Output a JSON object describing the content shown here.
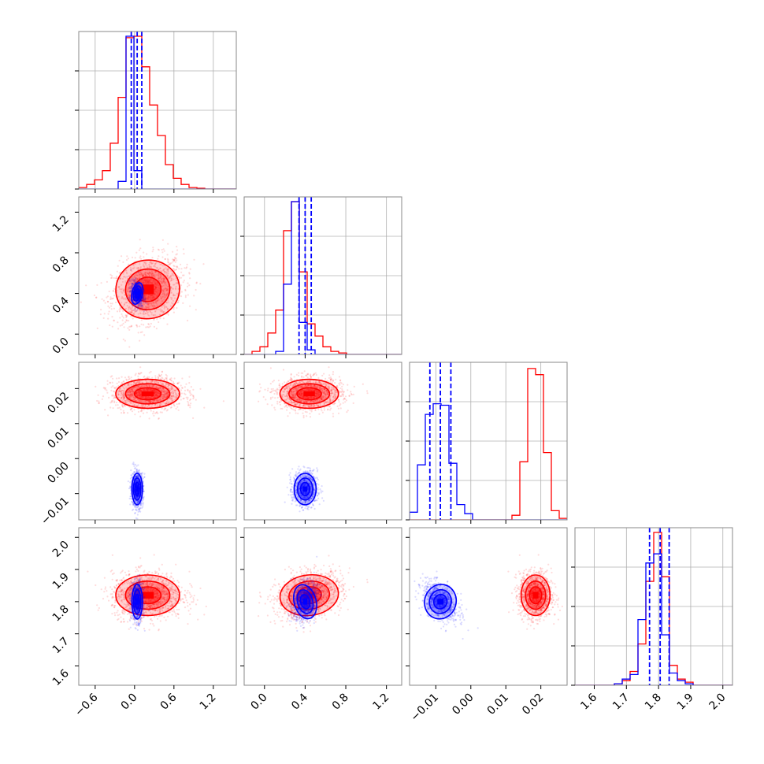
{
  "chart_data": {
    "type": "corner",
    "parameters": 4,
    "colors": {
      "series_a": "#ff0000",
      "series_b": "#0000ff",
      "grid": "#b0b0b0",
      "frame": "#888888"
    },
    "grid": true,
    "axes": [
      {
        "range": [
          -0.85,
          1.55
        ],
        "ticks": [
          -0.6,
          0.0,
          0.6,
          1.2
        ],
        "tick_labels": [
          "−0.6",
          "0.0",
          "0.6",
          "1.2"
        ]
      },
      {
        "range": [
          -0.2,
          1.35
        ],
        "ticks": [
          0.0,
          0.4,
          0.8,
          1.2
        ],
        "tick_labels": [
          "0.0",
          "0.4",
          "0.8",
          "1.2"
        ]
      },
      {
        "range": [
          -0.0175,
          0.0275
        ],
        "ticks": [
          -0.01,
          0.0,
          0.01,
          0.02
        ],
        "tick_labels": [
          "−0.01",
          "0.00",
          "0.01",
          "0.02"
        ]
      },
      {
        "range": [
          1.54,
          2.03
        ],
        "ticks": [
          1.6,
          1.7,
          1.8,
          1.9,
          2.0
        ],
        "tick_labels": [
          "1.6",
          "1.7",
          "1.8",
          "1.9",
          "2.0"
        ]
      }
    ],
    "series": [
      {
        "color": "#ff0000",
        "mean": [
          0.2,
          0.44,
          0.0185,
          1.82
        ],
        "std": [
          0.27,
          0.16,
          0.0023,
          0.035
        ],
        "correlation": [
          [
            1,
            0.25,
            0,
            0
          ],
          [
            0.25,
            1,
            0,
            0.3
          ],
          [
            0,
            0,
            1,
            0
          ],
          [
            0,
            0.3,
            0,
            1
          ]
        ]
      },
      {
        "color": "#0000ff",
        "mean": [
          0.04,
          0.4,
          -0.0087,
          1.8
        ],
        "std": [
          0.045,
          0.06,
          0.0025,
          0.03
        ],
        "correlation": [
          [
            1,
            -0.2,
            0,
            0
          ],
          [
            -0.2,
            1,
            0,
            0.3
          ],
          [
            0,
            0,
            1,
            -0.45
          ],
          [
            0,
            0.3,
            -0.45,
            1
          ]
        ]
      }
    ],
    "quantiles": [
      [
        -0.05,
        0.04,
        0.11
      ],
      [
        0.34,
        0.4,
        0.46
      ],
      [
        -0.0117,
        -0.0087,
        -0.0057
      ],
      [
        1.772,
        1.805,
        1.833
      ]
    ],
    "histograms": [
      {
        "series_a": [
          0.01,
          0.03,
          0.06,
          0.12,
          0.3,
          0.6,
          0.99,
          1.0,
          0.8,
          0.55,
          0.35,
          0.16,
          0.07,
          0.03,
          0.01,
          0.005,
          0,
          0,
          0,
          0
        ],
        "series_b": [
          0,
          0,
          0,
          0,
          0,
          0.05,
          1.0,
          0.12,
          0,
          0,
          0,
          0,
          0,
          0,
          0,
          0,
          0,
          0,
          0,
          0
        ]
      },
      {
        "series_a": [
          0,
          0.02,
          0.05,
          0.14,
          0.29,
          0.81,
          1.0,
          0.54,
          0.2,
          0.12,
          0.05,
          0.02,
          0.01,
          0,
          0,
          0,
          0,
          0,
          0,
          0
        ],
        "series_b": [
          0,
          0,
          0,
          0,
          0.02,
          0.46,
          1.0,
          0.21,
          0.03,
          0,
          0,
          0,
          0,
          0,
          0,
          0,
          0,
          0,
          0,
          0
        ]
      },
      {
        "series_a": [
          0,
          0,
          0,
          0,
          0,
          0,
          0,
          0,
          0,
          0,
          0,
          0,
          0,
          0.03,
          0.38,
          0.99,
          0.95,
          0.44,
          0.06,
          0.01
        ],
        "series_b": [
          0.05,
          0.36,
          0.69,
          0.76,
          0.75,
          0.37,
          0.1,
          0.04,
          0,
          0,
          0,
          0,
          0,
          0,
          0,
          0,
          0,
          0,
          0,
          0
        ]
      },
      {
        "series_a": [
          0,
          0,
          0,
          0,
          0,
          0.01,
          0.03,
          0.09,
          0.27,
          0.68,
          1.0,
          0.71,
          0.13,
          0.04,
          0.02,
          0,
          0,
          0,
          0,
          0
        ],
        "series_b": [
          0,
          0,
          0,
          0,
          0,
          0.01,
          0.04,
          0.07,
          0.43,
          0.8,
          0.86,
          0.33,
          0.08,
          0.03,
          0.01,
          0,
          0,
          0,
          0,
          0
        ]
      }
    ]
  }
}
